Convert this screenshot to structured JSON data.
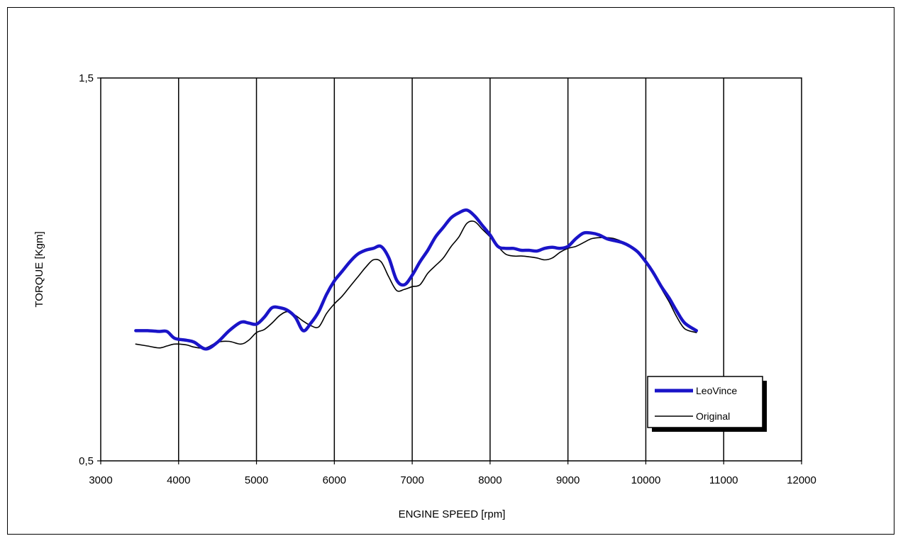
{
  "chart_data": {
    "type": "line",
    "title": "",
    "xlabel": "ENGINE SPEED [rpm]",
    "ylabel": "TORQUE [Kgm]",
    "xlim": [
      3000,
      12000
    ],
    "ylim": [
      0.5,
      1.5
    ],
    "xticks": [
      3000,
      4000,
      5000,
      6000,
      7000,
      8000,
      9000,
      10000,
      11000,
      12000
    ],
    "yticks": [
      0.5,
      1.5
    ],
    "ytick_labels": [
      "0,5",
      "1,5"
    ],
    "vertical_grid": true,
    "horizontal_grid": false,
    "legend_position": "bottom-right",
    "series": [
      {
        "name": "LeoVince",
        "color": "#1a14c8",
        "x": [
          3450,
          3600,
          3750,
          3850,
          3950,
          4100,
          4200,
          4350,
          4500,
          4650,
          4800,
          4900,
          5000,
          5100,
          5200,
          5300,
          5400,
          5500,
          5600,
          5700,
          5800,
          5900,
          6000,
          6100,
          6200,
          6300,
          6400,
          6500,
          6600,
          6700,
          6800,
          6900,
          7000,
          7100,
          7200,
          7300,
          7400,
          7500,
          7600,
          7700,
          7800,
          7900,
          8000,
          8100,
          8200,
          8300,
          8400,
          8500,
          8600,
          8700,
          8800,
          8900,
          9000,
          9100,
          9200,
          9300,
          9400,
          9500,
          9600,
          9700,
          9800,
          9900,
          10000,
          10100,
          10200,
          10300,
          10400,
          10500,
          10650
        ],
        "y": [
          0.84,
          0.84,
          0.838,
          0.838,
          0.82,
          0.815,
          0.81,
          0.792,
          0.81,
          0.84,
          0.862,
          0.86,
          0.857,
          0.875,
          0.9,
          0.9,
          0.893,
          0.875,
          0.84,
          0.86,
          0.89,
          0.935,
          0.97,
          0.995,
          1.02,
          1.04,
          1.05,
          1.055,
          1.06,
          1.03,
          0.972,
          0.96,
          0.985,
          1.02,
          1.05,
          1.085,
          1.11,
          1.135,
          1.148,
          1.155,
          1.14,
          1.115,
          1.09,
          1.06,
          1.055,
          1.055,
          1.05,
          1.05,
          1.048,
          1.055,
          1.058,
          1.055,
          1.06,
          1.08,
          1.095,
          1.095,
          1.09,
          1.08,
          1.075,
          1.07,
          1.06,
          1.045,
          1.02,
          0.99,
          0.955,
          0.925,
          0.89,
          0.86,
          0.84
        ]
      },
      {
        "name": "Original",
        "color": "#000000",
        "x": [
          3450,
          3600,
          3750,
          3850,
          3950,
          4100,
          4200,
          4350,
          4500,
          4650,
          4800,
          4900,
          5000,
          5100,
          5200,
          5300,
          5400,
          5500,
          5600,
          5700,
          5800,
          5900,
          6000,
          6100,
          6200,
          6300,
          6400,
          6500,
          6600,
          6700,
          6800,
          6900,
          7000,
          7100,
          7200,
          7300,
          7400,
          7500,
          7600,
          7700,
          7800,
          7900,
          8000,
          8100,
          8200,
          8300,
          8400,
          8500,
          8600,
          8700,
          8800,
          8900,
          9000,
          9100,
          9200,
          9300,
          9400,
          9500,
          9600,
          9700,
          9800,
          9900,
          10000,
          10100,
          10200,
          10300,
          10400,
          10500,
          10650
        ],
        "y": [
          0.805,
          0.8,
          0.795,
          0.8,
          0.805,
          0.803,
          0.797,
          0.795,
          0.81,
          0.812,
          0.805,
          0.815,
          0.835,
          0.843,
          0.86,
          0.88,
          0.89,
          0.88,
          0.865,
          0.853,
          0.85,
          0.885,
          0.91,
          0.93,
          0.955,
          0.98,
          1.005,
          1.025,
          1.02,
          0.98,
          0.945,
          0.948,
          0.955,
          0.96,
          0.99,
          1.01,
          1.03,
          1.06,
          1.085,
          1.12,
          1.125,
          1.105,
          1.085,
          1.06,
          1.04,
          1.035,
          1.035,
          1.033,
          1.03,
          1.025,
          1.03,
          1.045,
          1.055,
          1.06,
          1.07,
          1.08,
          1.083,
          1.083,
          1.08,
          1.072,
          1.06,
          1.045,
          1.02,
          0.99,
          0.95,
          0.915,
          0.875,
          0.845,
          0.835
        ]
      }
    ]
  }
}
